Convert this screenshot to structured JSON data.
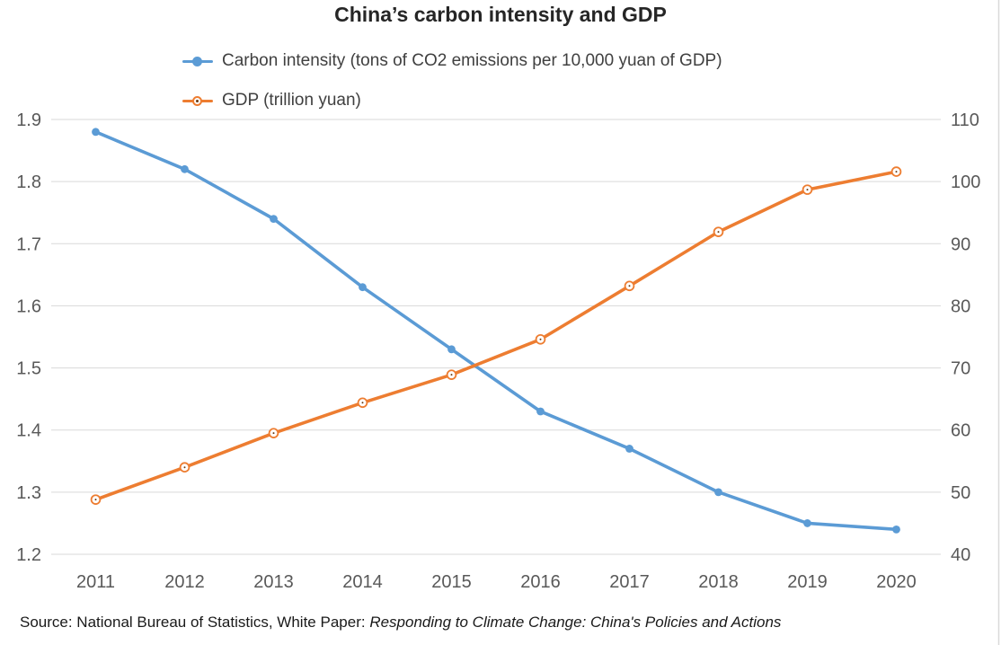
{
  "title": "China’s carbon intensity and GDP",
  "source": {
    "prefix": "Source: National Bureau of Statistics, White Paper: ",
    "title_italic": "Responding to Climate Change: China's Policies and Actions"
  },
  "colors": {
    "carbon_blue": "#5B9BD5",
    "gdp_orange": "#ED7D31",
    "gridline": "#D9D9D9",
    "axis_text": "#595959",
    "title_text": "#262626",
    "legend_text": "#404040",
    "gdp_marker_core": "#6b3a12",
    "chart_border": "#D9D9D9"
  },
  "chart_data": {
    "type": "line",
    "title": "China’s carbon intensity and GDP",
    "categories": [
      "2011",
      "2012",
      "2013",
      "2014",
      "2015",
      "2016",
      "2017",
      "2018",
      "2019",
      "2020"
    ],
    "series": [
      {
        "name": "Carbon intensity (tons of CO2 emissions per 10,000 yuan of GDP)",
        "axis": "left",
        "color": "#5B9BD5",
        "marker": "filled-circle",
        "values": [
          1.88,
          1.82,
          1.74,
          1.63,
          1.53,
          1.43,
          1.37,
          1.3,
          1.25,
          1.24
        ]
      },
      {
        "name": "GDP (trillion yuan)",
        "axis": "right",
        "color": "#ED7D31",
        "marker": "open-circle",
        "values": [
          48.8,
          54.0,
          59.5,
          64.4,
          68.9,
          74.6,
          83.2,
          91.9,
          98.7,
          101.6
        ]
      }
    ],
    "left_axis": {
      "min": 1.2,
      "max": 1.9,
      "ticks": [
        "1.9",
        "1.8",
        "1.7",
        "1.6",
        "1.5",
        "1.4",
        "1.3",
        "1.2"
      ]
    },
    "right_axis": {
      "min": 40,
      "max": 110,
      "ticks": [
        "110",
        "100",
        "90",
        "80",
        "70",
        "60",
        "50",
        "40"
      ]
    },
    "grid": "horizontal",
    "legend_position": "top-left",
    "xlabel": "",
    "ylabel_left": "",
    "ylabel_right": ""
  }
}
